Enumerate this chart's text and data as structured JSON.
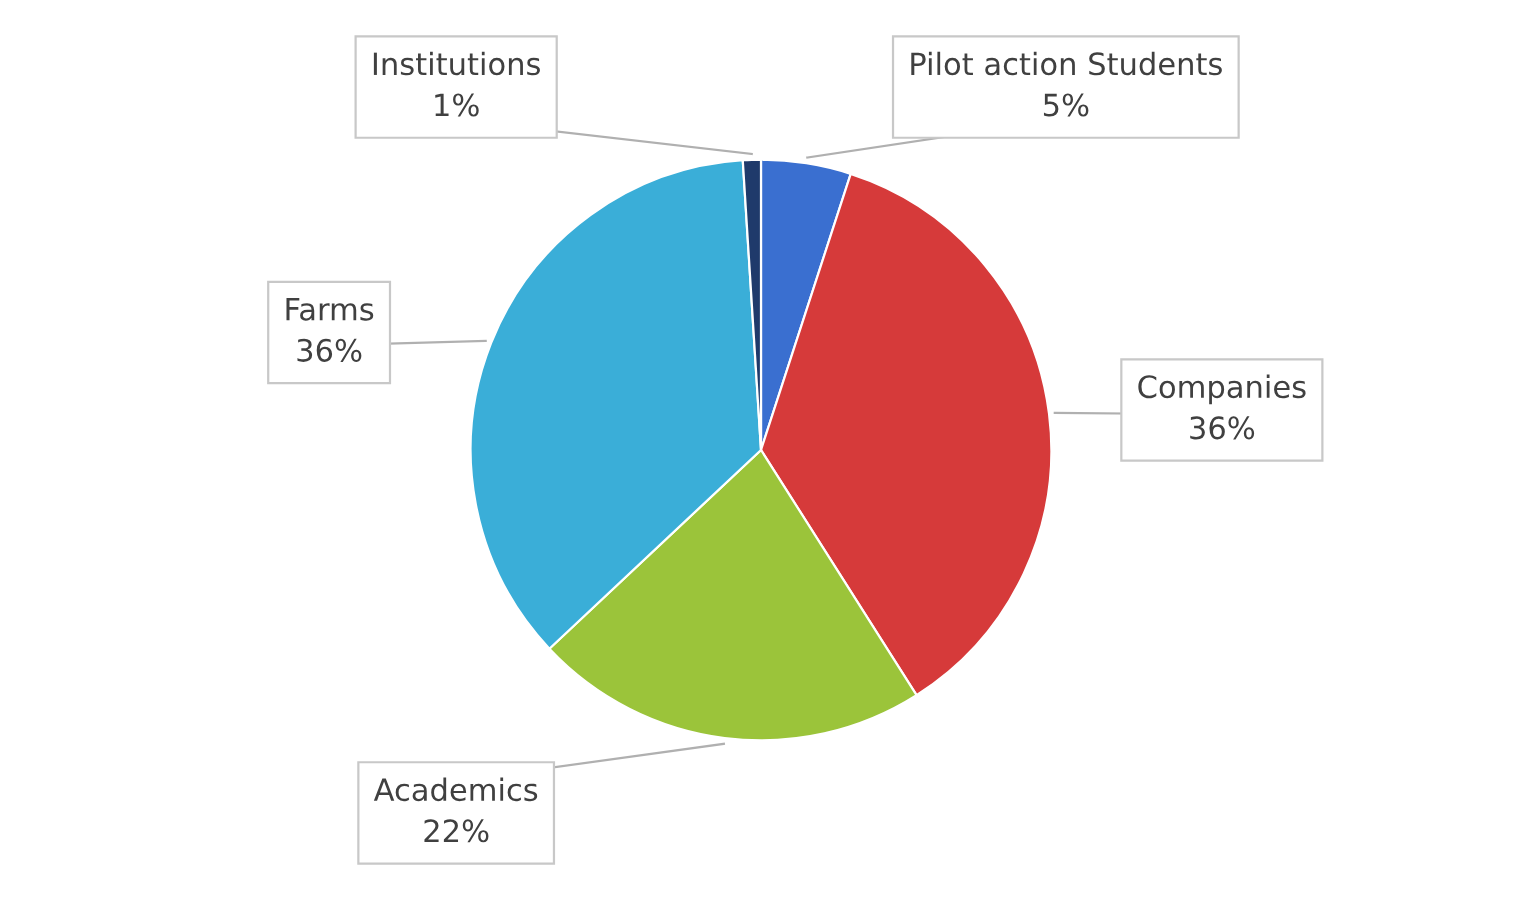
{
  "chart_data": {
    "type": "pie",
    "categories": [
      "Pilot action Students",
      "Companies",
      "Academics",
      "Farms",
      "Institutions"
    ],
    "values": [
      5,
      36,
      22,
      36,
      1
    ],
    "colors": [
      "#3a6fd0",
      "#d63a3a",
      "#9bc43a",
      "#3aaed8",
      "#1f3a6b"
    ],
    "value_labels": [
      "5%",
      "36%",
      "22%",
      "36%",
      "1%"
    ]
  }
}
